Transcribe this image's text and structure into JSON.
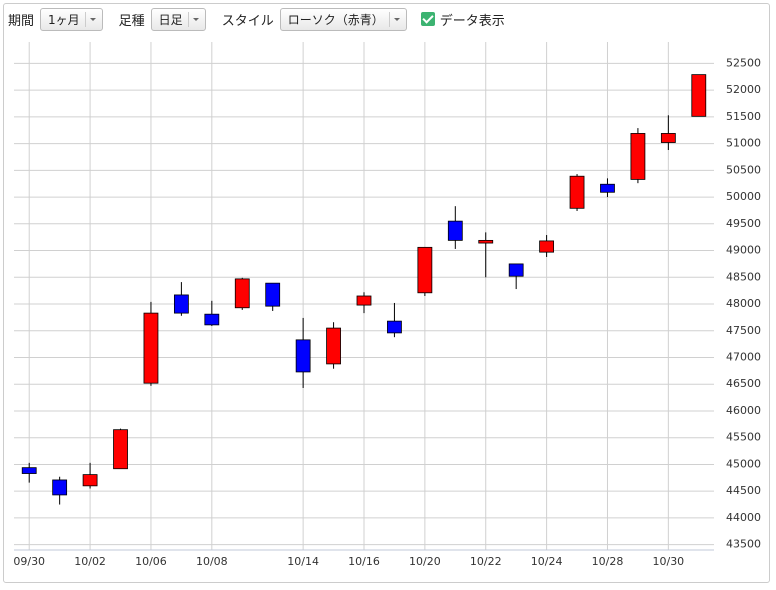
{
  "controls": {
    "period_label": "期間",
    "period_value": "1ヶ月",
    "bar_label": "足種",
    "bar_value": "日足",
    "style_label": "スタイル",
    "style_value": "ローソク（赤青）",
    "data_toggle": "データ表示"
  },
  "chart_data": {
    "type": "candlestick",
    "categories": [
      "09/30",
      null,
      "10/02",
      null,
      "10/06",
      null,
      "10/08",
      null,
      null,
      "10/14",
      null,
      "10/16",
      null,
      "10/20",
      null,
      "10/22",
      null,
      "10/24",
      null,
      "10/28",
      null,
      "10/30",
      null
    ],
    "open": [
      44940,
      44710,
      44600,
      44920,
      46520,
      48170,
      47810,
      47930,
      48390,
      47330,
      46880,
      47980,
      47680,
      48210,
      49550,
      49140,
      48750,
      48970,
      49790,
      50240,
      50330,
      51020,
      51510
    ],
    "high": [
      45030,
      44770,
      45030,
      45670,
      48040,
      48410,
      48060,
      48490,
      48390,
      47740,
      47660,
      48220,
      48020,
      49060,
      49830,
      49340,
      48750,
      49290,
      50430,
      50350,
      51290,
      51530,
      52290
    ],
    "low": [
      44660,
      44250,
      44550,
      44920,
      46470,
      47780,
      47590,
      47890,
      47870,
      46430,
      46790,
      47830,
      47380,
      48150,
      49030,
      48500,
      48280,
      48880,
      49740,
      50000,
      50260,
      50880,
      51510
    ],
    "close": [
      44830,
      44430,
      44810,
      45650,
      47830,
      47830,
      47610,
      48470,
      47960,
      46730,
      47550,
      48150,
      47460,
      49060,
      49190,
      49190,
      48520,
      49180,
      50390,
      50090,
      51190,
      51190,
      52290
    ],
    "up_color": "#ff0000",
    "down_color": "#0000ff",
    "ylim": [
      43400,
      52900
    ],
    "yticks": [
      43500,
      44000,
      44500,
      45000,
      45500,
      46000,
      46500,
      47000,
      47500,
      48000,
      48500,
      49000,
      49500,
      50000,
      50500,
      51000,
      51500,
      52000,
      52500
    ],
    "grid": true
  }
}
